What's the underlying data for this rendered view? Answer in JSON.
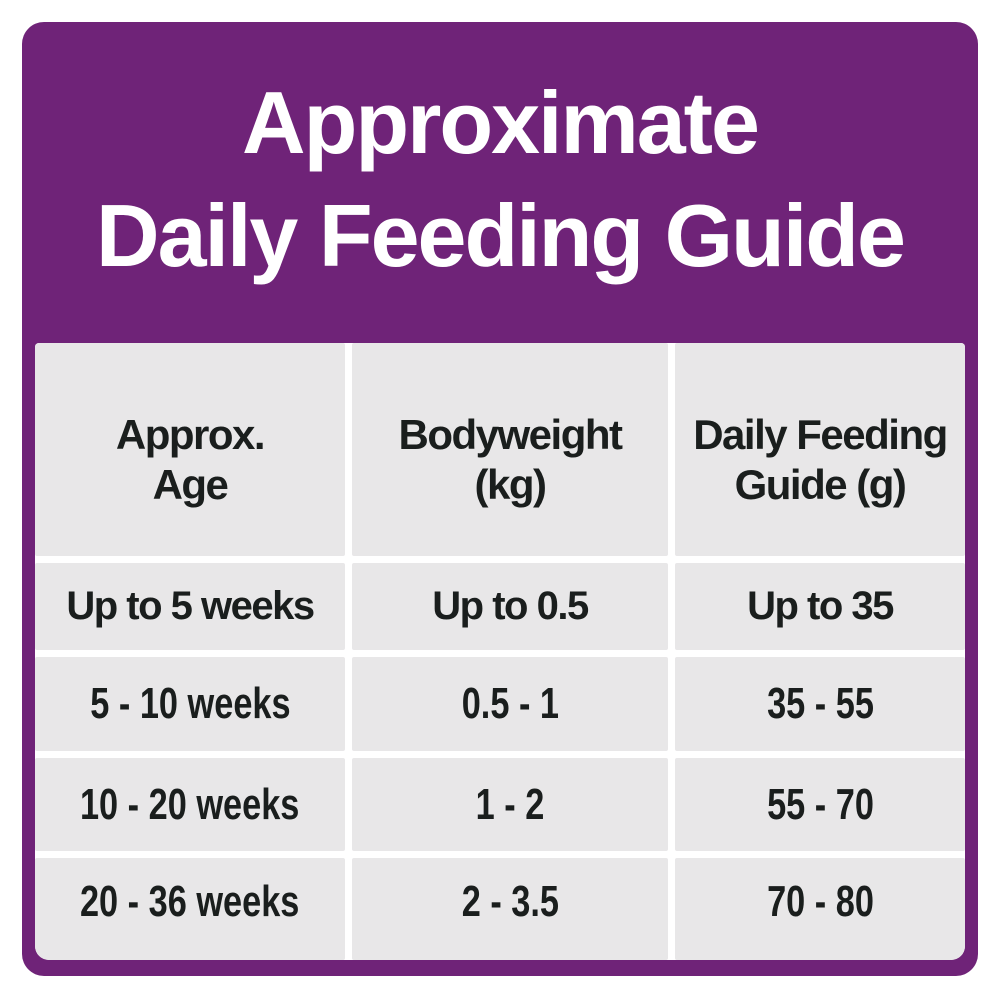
{
  "title": "Approximate\nDaily Feeding Guide",
  "colors": {
    "card_purple": "#6F2378",
    "cell_gray": "#E8E7E8",
    "text_dark": "#1A1E1D",
    "title_white": "#FFFFFF",
    "gutter_white": "#FFFFFF"
  },
  "table": {
    "headers": [
      "Approx.\nAge",
      "Bodyweight\n(kg)",
      "Daily Feeding\nGuide (g)"
    ],
    "rows": [
      [
        "Up to 5 weeks",
        "Up to 0.5",
        "Up to 35"
      ],
      [
        "5 - 10 weeks",
        "0.5 - 1",
        "35 - 55"
      ],
      [
        "10 - 20 weeks",
        "1 - 2",
        "55 - 70"
      ],
      [
        "20 - 36 weeks",
        "2 - 3.5",
        "70 - 80"
      ]
    ]
  },
  "chart_data": {
    "type": "table",
    "title": "Approximate Daily Feeding Guide",
    "columns": [
      "Approx. Age",
      "Bodyweight (kg)",
      "Daily Feeding Guide (g)"
    ],
    "rows": [
      [
        "Up to 5 weeks",
        "Up to 0.5",
        "Up to 35"
      ],
      [
        "5 - 10 weeks",
        "0.5 - 1",
        "35 - 55"
      ],
      [
        "10 - 20 weeks",
        "1 - 2",
        "55 - 70"
      ],
      [
        "20 - 36 weeks",
        "2 - 3.5",
        "70 - 80"
      ]
    ]
  }
}
